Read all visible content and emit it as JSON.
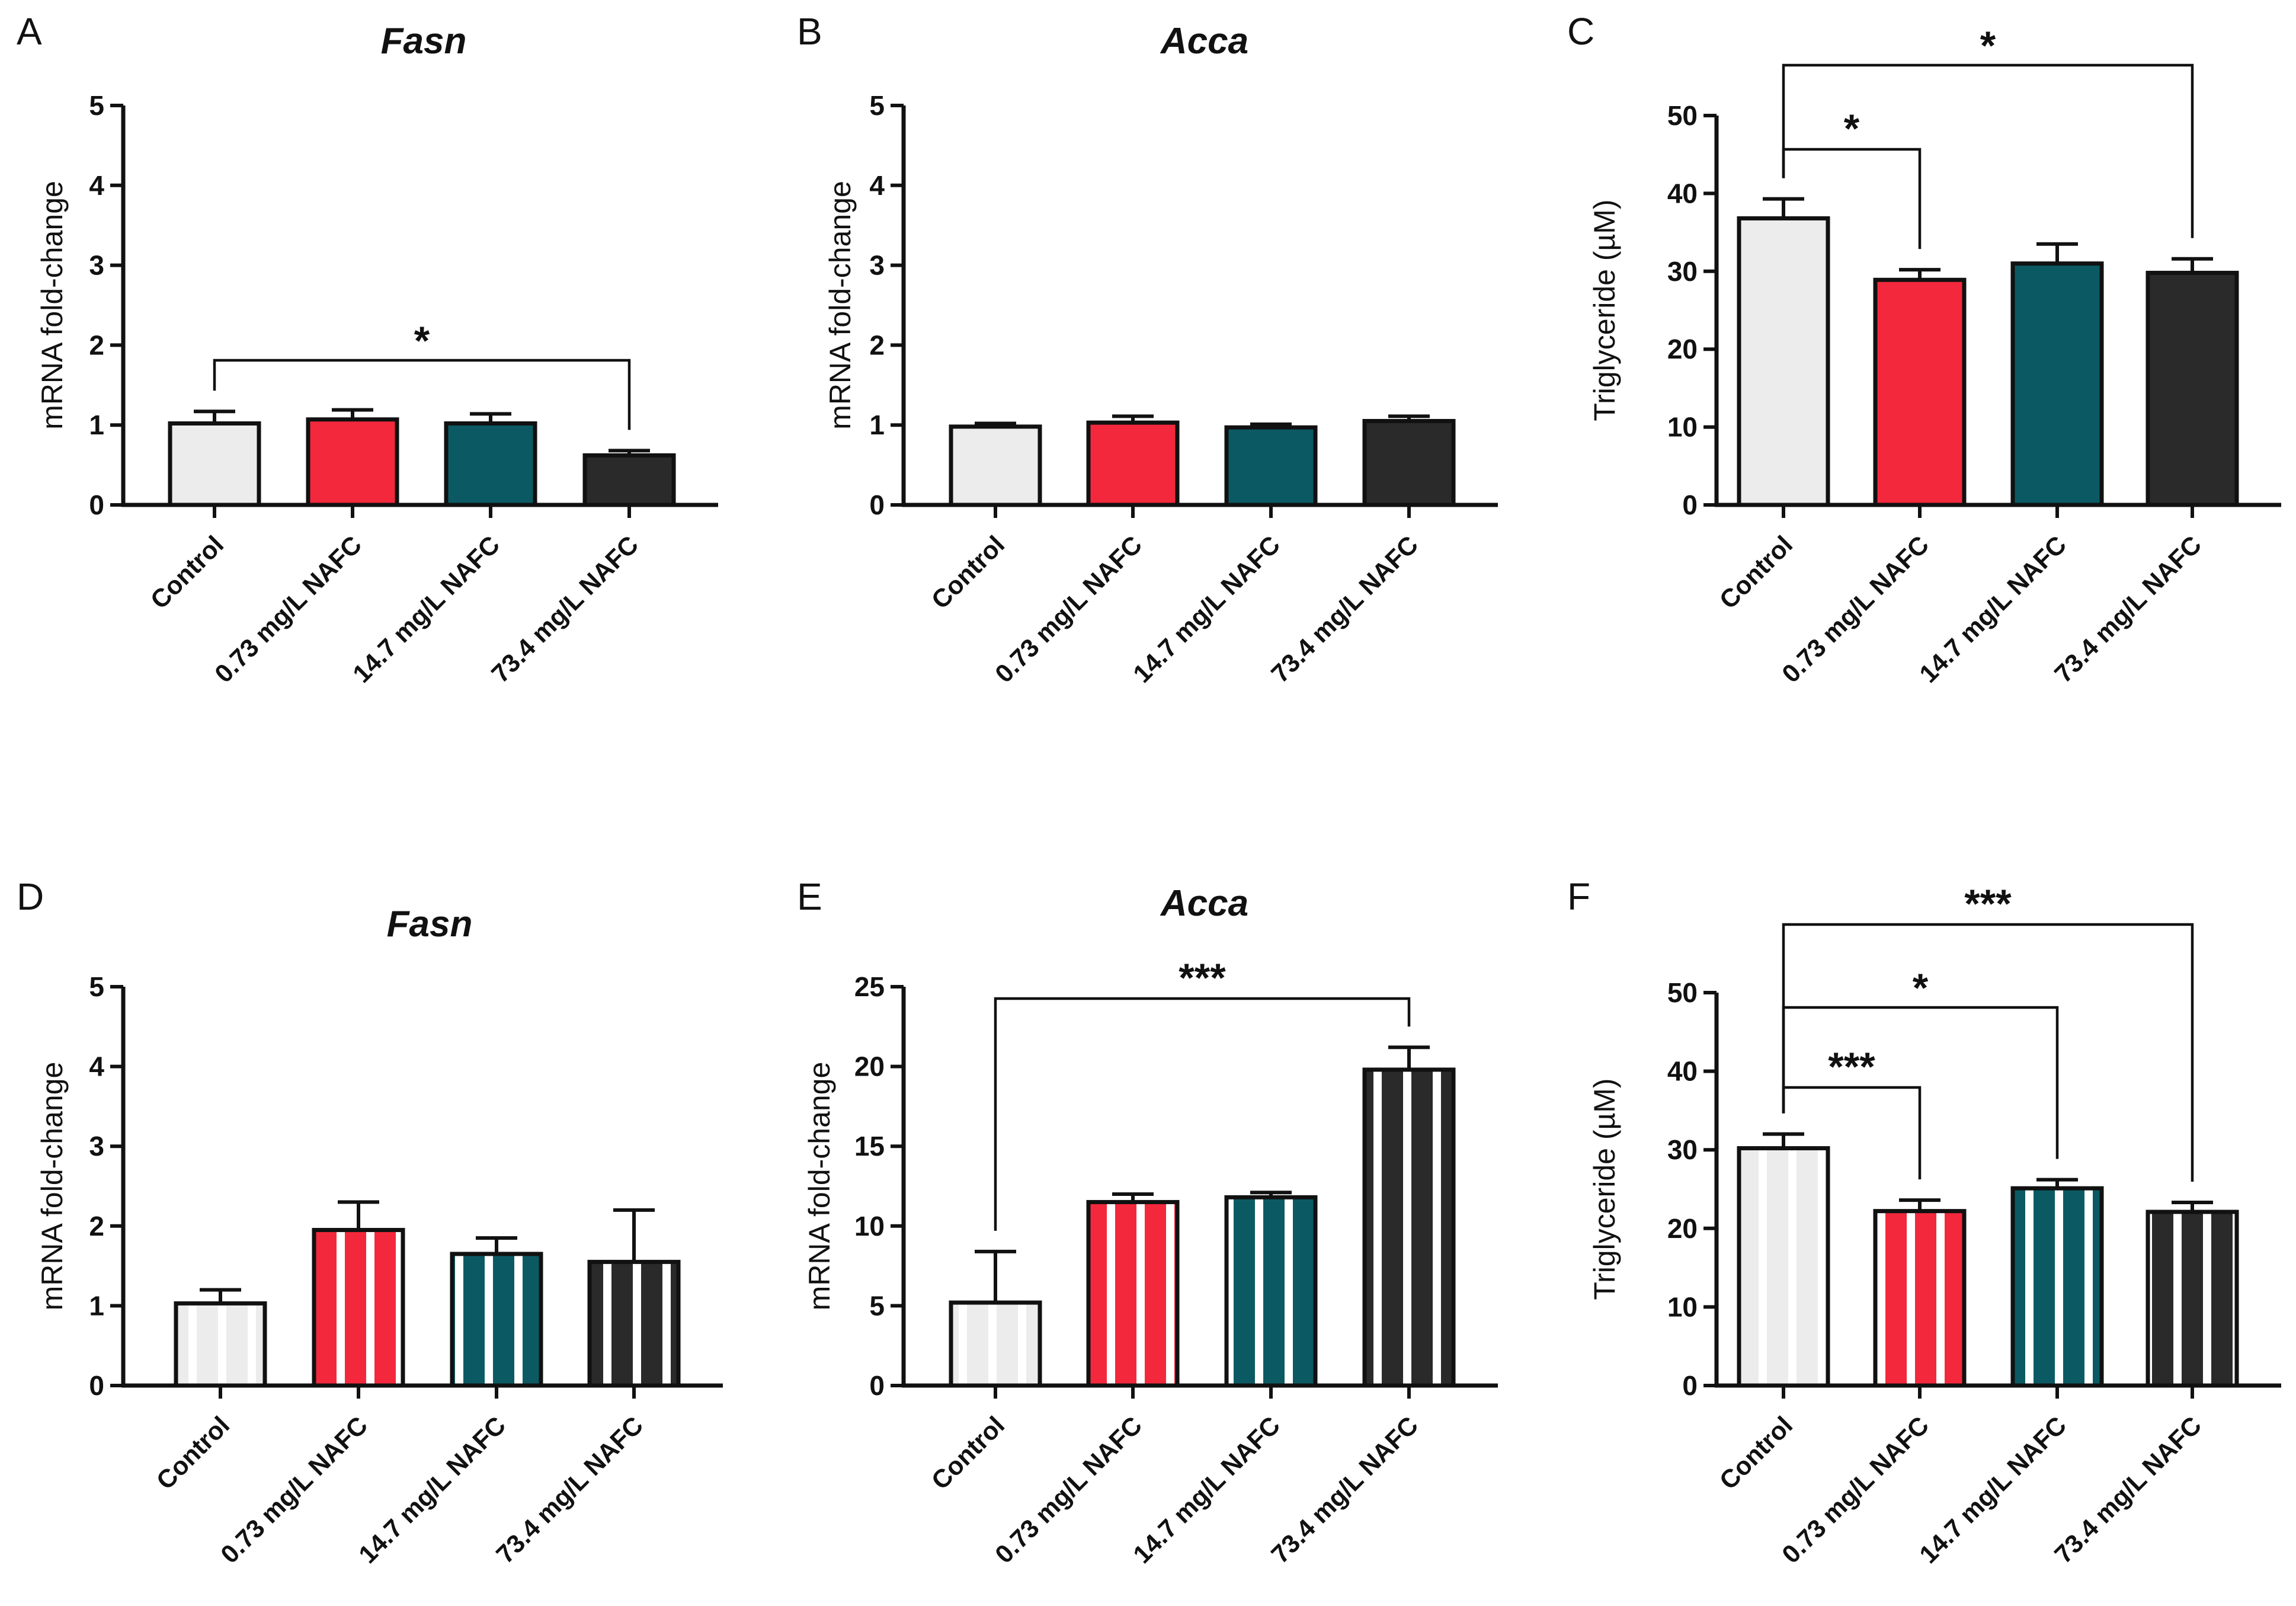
{
  "colors": {
    "Control": "#ececec",
    "0.73 mg/L NAFC": "#f4283c",
    "14.7 mg/L NAFC": "#0b5a63",
    "73.4 mg/L NAFC": "#2a2a2a",
    "stripe": "#ffffff",
    "axis": "#111111"
  },
  "chart_data": [
    {
      "panel": "A",
      "type": "bar",
      "title": "Fasn",
      "ylabel": "mRNA fold-change",
      "ylim": [
        0,
        5
      ],
      "yticks": [
        0,
        1,
        2,
        3,
        4,
        5
      ],
      "categories": [
        "Control",
        "0.73 mg/L NAFC",
        "14.7 mg/L NAFC",
        "73.4 mg/L NAFC"
      ],
      "values": [
        1.02,
        1.07,
        1.02,
        0.62
      ],
      "errors": [
        0.15,
        0.12,
        0.12,
        0.06
      ],
      "striped": false,
      "significance": [
        {
          "from": 0,
          "to": 3,
          "label": "*"
        }
      ]
    },
    {
      "panel": "B",
      "type": "bar",
      "title": "Acca",
      "ylabel": "mRNA fold-change",
      "ylim": [
        0,
        5
      ],
      "yticks": [
        0,
        1,
        2,
        3,
        4,
        5
      ],
      "categories": [
        "Control",
        "0.73 mg/L NAFC",
        "14.7 mg/L NAFC",
        "73.4 mg/L NAFC"
      ],
      "values": [
        0.98,
        1.03,
        0.97,
        1.05
      ],
      "errors": [
        0.04,
        0.08,
        0.04,
        0.06
      ],
      "striped": false,
      "significance": []
    },
    {
      "panel": "C",
      "type": "bar",
      "title": "",
      "ylabel": "Triglyceride (µM)",
      "ylim": [
        0,
        50
      ],
      "yticks": [
        0,
        10,
        20,
        30,
        40,
        50
      ],
      "categories": [
        "Control",
        "0.73 mg/L NAFC",
        "14.7 mg/L  NAFC",
        "73.4 mg/L NAFC"
      ],
      "values": [
        36.8,
        28.9,
        31.0,
        29.8
      ],
      "errors": [
        2.5,
        1.3,
        2.5,
        1.8
      ],
      "striped": false,
      "significance": [
        {
          "from": 0,
          "to": 1,
          "label": "*"
        },
        {
          "from": 0,
          "to": 3,
          "label": "*"
        }
      ]
    },
    {
      "panel": "D",
      "type": "bar",
      "title": "Fasn",
      "ylabel": "mRNA fold-change",
      "ylim": [
        0,
        5
      ],
      "yticks": [
        0,
        1,
        2,
        3,
        4,
        5
      ],
      "categories": [
        "Control",
        "0.73 mg/L NAFC",
        "14.7 mg/L NAFC",
        "73.4 mg/L NAFC"
      ],
      "values": [
        1.03,
        1.95,
        1.65,
        1.55
      ],
      "errors": [
        0.17,
        0.35,
        0.2,
        0.65
      ],
      "striped": true,
      "significance": []
    },
    {
      "panel": "E",
      "type": "bar",
      "title": "Acca",
      "ylabel": "mRNA fold-change",
      "ylim": [
        0,
        25
      ],
      "yticks": [
        0,
        5,
        10,
        15,
        20,
        25
      ],
      "categories": [
        "Control",
        "0.73 mg/L NAFC",
        "14.7 mg/L NAFC",
        "73.4 mg/L NAFC"
      ],
      "values": [
        5.2,
        11.5,
        11.8,
        19.8
      ],
      "errors": [
        3.2,
        0.5,
        0.3,
        1.4
      ],
      "striped": true,
      "significance": [
        {
          "from": 0,
          "to": 3,
          "label": "***"
        }
      ]
    },
    {
      "panel": "F",
      "type": "bar",
      "title": "",
      "ylabel": "Triglyceride (µM)",
      "ylim": [
        0,
        50
      ],
      "yticks": [
        0,
        10,
        20,
        30,
        40,
        50
      ],
      "categories": [
        "Control",
        "0.73 mg/L NAFC",
        "14.7 mg/L NAFC",
        "73.4 mg/L NAFC"
      ],
      "values": [
        30.2,
        22.2,
        25.1,
        22.1
      ],
      "errors": [
        1.8,
        1.4,
        1.1,
        1.2
      ],
      "striped": true,
      "significance": [
        {
          "from": 0,
          "to": 1,
          "label": "***"
        },
        {
          "from": 0,
          "to": 2,
          "label": "*"
        },
        {
          "from": 0,
          "to": 3,
          "label": "***"
        }
      ]
    }
  ]
}
